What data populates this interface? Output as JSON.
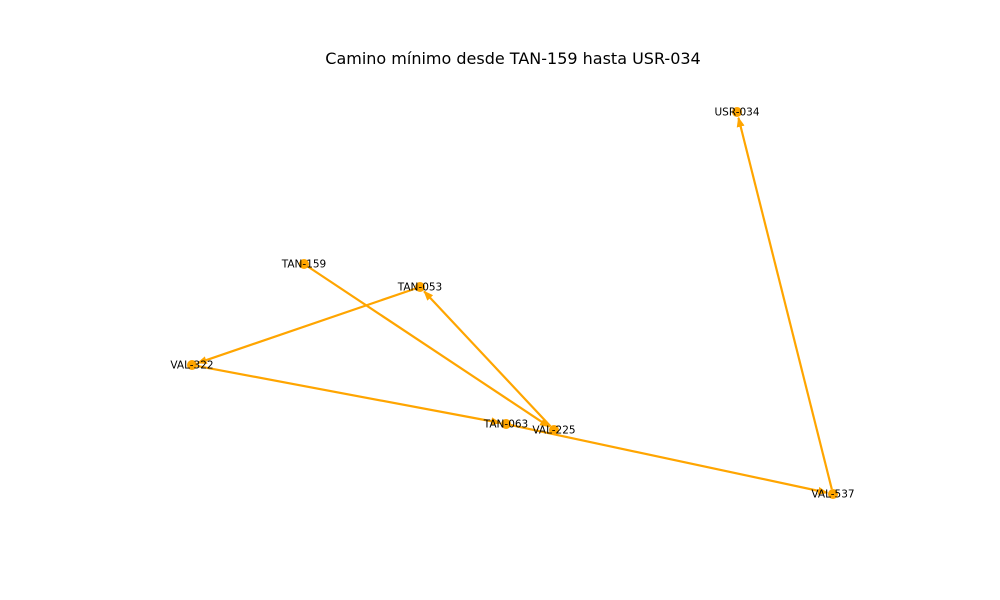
{
  "title": "Camino mínimo desde TAN-159 hasta USR-034",
  "colors": {
    "edge": "#ffa500",
    "node": "#ffa500",
    "label": "#000000",
    "background": "#ffffff"
  },
  "nodes": [
    {
      "id": "TAN-159",
      "label": "TAN-159"
    },
    {
      "id": "VAL-225",
      "label": "VAL-225"
    },
    {
      "id": "TAN-053",
      "label": "TAN-053"
    },
    {
      "id": "VAL-322",
      "label": "VAL-322"
    },
    {
      "id": "TAN-063",
      "label": "TAN-063"
    },
    {
      "id": "VAL-537",
      "label": "VAL-537"
    },
    {
      "id": "USR-034",
      "label": "USR-034"
    }
  ],
  "edges": [
    {
      "from": "TAN-159",
      "to": "VAL-225"
    },
    {
      "from": "VAL-225",
      "to": "TAN-053"
    },
    {
      "from": "TAN-053",
      "to": "VAL-322"
    },
    {
      "from": "VAL-322",
      "to": "TAN-063"
    },
    {
      "from": "TAN-063",
      "to": "VAL-537"
    },
    {
      "from": "VAL-537",
      "to": "USR-034"
    }
  ]
}
